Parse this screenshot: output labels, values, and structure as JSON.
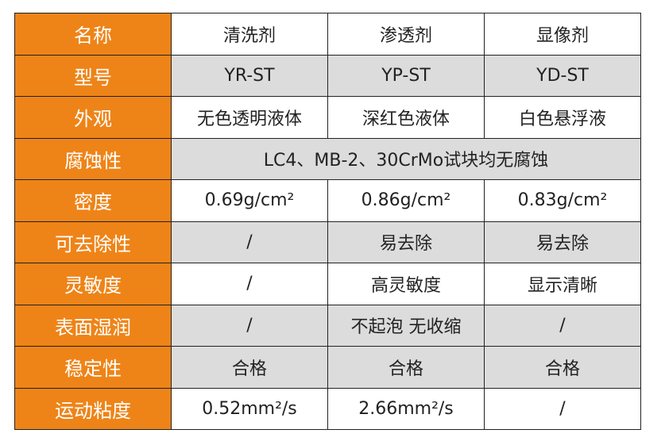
{
  "table": {
    "rows": [
      [
        "名称",
        "清洗剂",
        "渗透剂",
        "显像剂"
      ],
      [
        "型号",
        "YR-ST",
        "YP-ST",
        "YD-ST"
      ],
      [
        "外观",
        "无色透明液体",
        "深红色液体",
        "白色悬浮液"
      ],
      [
        "腐蚀性",
        "LC4、MB-2、30CrMo试块均无腐蚀"
      ],
      [
        "密度",
        "0.69g/cm²",
        "0.86g/cm²",
        "0.83g/cm²"
      ],
      [
        "可去除性",
        "/",
        "易去除",
        "易去除"
      ],
      [
        "灵敏度",
        "/",
        "高灵敏度",
        "显示清晰"
      ],
      [
        "表面湿润",
        "/",
        "不起泡 无收缩",
        "/"
      ],
      [
        "稳定性",
        "合格",
        "合格",
        "合格"
      ],
      [
        "运动粘度",
        "0.52mm²/s",
        "2.66mm²/s",
        "/"
      ]
    ]
  }
}
